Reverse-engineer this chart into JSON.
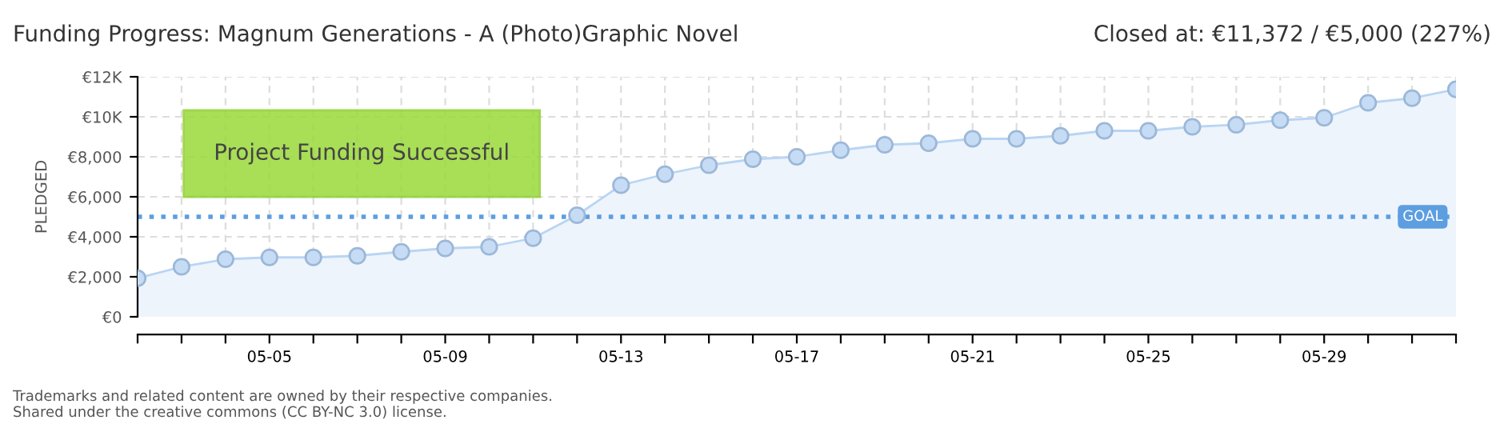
{
  "chart_data": {
    "type": "area",
    "title": "Funding Progress: Magnum Generations - A (Photo)Graphic Novel",
    "subtitle": "Closed at: €11,372 / €5,000 (227%)",
    "ylabel": "PLEDGED",
    "categories": [
      null,
      null,
      null,
      "05-05",
      null,
      null,
      null,
      "05-09",
      null,
      null,
      null,
      "05-13",
      null,
      null,
      null,
      "05-17",
      null,
      null,
      null,
      "05-21",
      null,
      null,
      null,
      "05-25",
      null,
      null,
      null,
      "05-29",
      null,
      null,
      null
    ],
    "series": [
      {
        "color": "#b9d5f3",
        "values": [
          1930,
          2500,
          2880,
          2970,
          2970,
          3050,
          3250,
          3420,
          3500,
          3930,
          5080,
          6580,
          7130,
          7580,
          7880,
          8000,
          8330,
          8600,
          8680,
          8900,
          8900,
          9050,
          9300,
          9300,
          9500,
          9600,
          9830,
          9950,
          10700,
          10930,
          11372
        ]
      }
    ],
    "ylim": [
      0,
      12000
    ],
    "yticks": [
      {
        "value": 0,
        "label": "€0"
      },
      {
        "value": 2000,
        "label": "€2,000"
      },
      {
        "value": 4000,
        "label": "€4,000"
      },
      {
        "value": 6000,
        "label": "€6,000"
      },
      {
        "value": 8000,
        "label": "€8,000"
      },
      {
        "value": 10000,
        "label": "€10K"
      },
      {
        "value": 12000,
        "label": "€12K"
      }
    ],
    "ref_lines": [
      {
        "axis": "y",
        "value": 5000,
        "label": "GOAL",
        "color": "#5d9ee0",
        "line_style": "dotted"
      }
    ],
    "annotations": [
      "Project Funding Successful",
      "Trademarks and related content are owned by their respective companies.",
      "Shared under the creative commons (CC BY-NC 3.0) license."
    ],
    "grid": true,
    "marker": "circle",
    "line_style": "solid",
    "legend": false
  }
}
